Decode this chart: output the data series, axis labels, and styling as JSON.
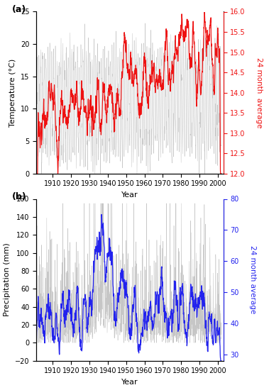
{
  "panel_a": {
    "label": "(a)",
    "ylabel_left": "Temperature (°C)",
    "ylabel_right": "24 month  average",
    "xlabel": "Year",
    "ylim_left": [
      0,
      25
    ],
    "ylim_right": [
      12.0,
      16.0
    ],
    "yticks_left": [
      0,
      5,
      10,
      15,
      20,
      25
    ],
    "yticks_right": [
      12.0,
      12.5,
      13.0,
      13.5,
      14.0,
      14.5,
      15.0,
      15.5,
      16.0
    ],
    "color_monthly": "#c0c0c0",
    "color_smooth": "#ee1111",
    "year_start": 1901,
    "year_end": 2002
  },
  "panel_b": {
    "label": "(b)",
    "ylabel_left": "Precipitation (mm)",
    "ylabel_right": "24 month average",
    "xlabel": "Year",
    "ylim_left": [
      -20,
      160
    ],
    "ylim_right": [
      28,
      80
    ],
    "yticks_left": [
      -20,
      0,
      20,
      40,
      60,
      80,
      100,
      120,
      140,
      160
    ],
    "yticks_right": [
      30,
      40,
      50,
      60,
      70,
      80
    ],
    "color_monthly": "#c0c0c0",
    "color_smooth": "#2222ee",
    "year_start": 1901,
    "year_end": 2002
  },
  "xticks": [
    1910,
    1920,
    1930,
    1940,
    1950,
    1960,
    1970,
    1980,
    1990,
    2000
  ],
  "background_color": "#ffffff",
  "figure_facecolor": "#ffffff"
}
